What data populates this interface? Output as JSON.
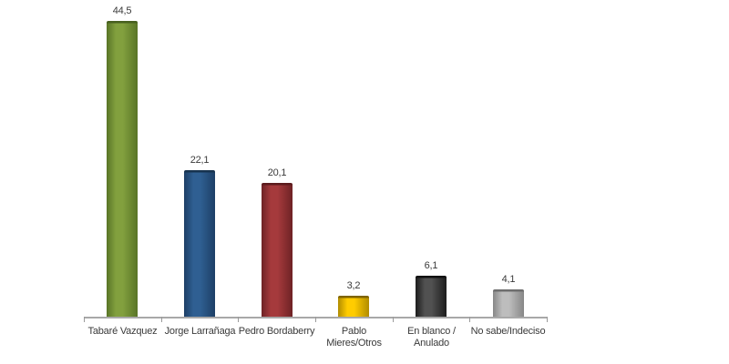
{
  "chart_data": {
    "type": "bar",
    "title": "",
    "xlabel": "",
    "ylabel": "",
    "ylim": [
      0,
      45
    ],
    "grid": false,
    "legend": "none",
    "decimal_separator": ",",
    "categories": [
      "Tabaré Vazquez",
      "Jorge Larrañaga",
      "Pedro Bordaberry",
      "Pablo Mieres/Otros",
      "En blanco / Anulado",
      "No sabe/Indeciso"
    ],
    "category_label_lines": [
      [
        "Tabaré Vazquez"
      ],
      [
        "Jorge Larrañaga"
      ],
      [
        "Pedro Bordaberry"
      ],
      [
        "Pablo",
        "Mieres/Otros"
      ],
      [
        "En blanco /",
        "Anulado"
      ],
      [
        "No sabe/Indeciso"
      ]
    ],
    "values": [
      44.5,
      22.1,
      20.1,
      3.2,
      6.1,
      4.1
    ],
    "value_labels": [
      "44,5",
      "22,1",
      "20,1",
      "3,2",
      "6,1",
      "4,1"
    ],
    "bar_colors": [
      {
        "name": "olive-green",
        "mid": "#82a03e",
        "edge": "#597527",
        "cap": "#47601f"
      },
      {
        "name": "steel-blue",
        "mid": "#2f5f92",
        "edge": "#1d3f66",
        "cap": "#17334f"
      },
      {
        "name": "dark-red",
        "mid": "#a53a3c",
        "edge": "#6e2225",
        "cap": "#5c1b1d"
      },
      {
        "name": "gold-yellow",
        "mid": "#ffcc00",
        "edge": "#b18c00",
        "cap": "#7f6400"
      },
      {
        "name": "dark-gray",
        "mid": "#515151",
        "edge": "#1c1c1c",
        "cap": "#111111"
      },
      {
        "name": "light-gray",
        "mid": "#bdbdbd",
        "edge": "#878787",
        "cap": "#6e6e6e"
      }
    ],
    "axis_color": "#a8a8a8",
    "tick_color": "#9a9a9a",
    "label_color": "#3a3a3a"
  }
}
